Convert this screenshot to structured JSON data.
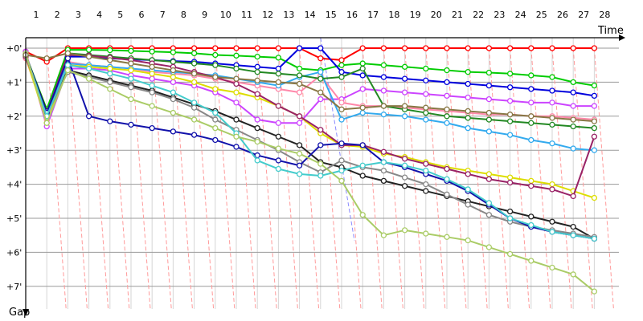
{
  "chart_data": {
    "type": "line",
    "xlabel": "Time",
    "ylabel": "Gap",
    "x": [
      1,
      2,
      3,
      4,
      5,
      6,
      7,
      8,
      9,
      10,
      11,
      12,
      13,
      14,
      15,
      16,
      17,
      18,
      19,
      20,
      21,
      22,
      23,
      24,
      25,
      26,
      27,
      28
    ],
    "x_tick_labels": [
      "1",
      "2",
      "3",
      "4",
      "5",
      "6",
      "7",
      "8",
      "9",
      "10",
      "11",
      "12",
      "13",
      "14",
      "15",
      "16",
      "17",
      "18",
      "19",
      "20",
      "21",
      "22",
      "23",
      "24",
      "25",
      "26",
      "27",
      "28"
    ],
    "y_tick_labels": [
      "+0'",
      "+1'",
      "+2'",
      "+3'",
      "+4'",
      "+5'",
      "+6'",
      "+7'"
    ],
    "ylim": [
      0,
      7.4
    ],
    "grid": true,
    "series": [
      {
        "color": "#ff0000",
        "values": [
          0.1,
          0.4,
          0,
          0,
          0,
          0,
          0,
          0,
          0,
          0,
          0,
          0,
          0,
          0,
          0.3,
          0.35,
          0,
          0,
          0,
          0,
          0,
          0,
          0,
          0,
          0,
          0,
          0,
          0
        ]
      },
      {
        "color": "#00cc00",
        "values": [
          0.2,
          1.8,
          0.05,
          0.05,
          0.06,
          0.08,
          0.1,
          0.12,
          0.15,
          0.2,
          0.22,
          0.25,
          0.28,
          0.6,
          0.65,
          0.5,
          0.45,
          0.5,
          0.55,
          0.6,
          0.65,
          0.7,
          0.72,
          0.75,
          0.8,
          0.85,
          1.0,
          1.1
        ]
      },
      {
        "color": "#0000dd",
        "values": [
          0.2,
          1.9,
          0.25,
          0.25,
          0.3,
          0.33,
          0.35,
          0.38,
          0.4,
          0.45,
          0.5,
          0.55,
          0.6,
          0,
          0,
          0.7,
          0.8,
          0.85,
          0.9,
          0.95,
          1.0,
          1.05,
          1.1,
          1.15,
          1.2,
          1.25,
          1.3,
          1.4
        ]
      },
      {
        "color": "#cc44ff",
        "values": [
          0.1,
          2.3,
          0.6,
          0.6,
          0.65,
          0.8,
          0.9,
          1.0,
          1.1,
          1.3,
          1.6,
          2.1,
          2.2,
          2.2,
          1.5,
          1.5,
          1.2,
          1.25,
          1.3,
          1.35,
          1.4,
          1.45,
          1.5,
          1.55,
          1.6,
          1.6,
          1.7,
          1.7
        ]
      },
      {
        "color": "#ff88aa",
        "values": [
          0.3,
          2.1,
          0.4,
          0.5,
          0.55,
          0.6,
          0.7,
          0.75,
          0.8,
          0.9,
          1.0,
          1.1,
          1.2,
          1.3,
          0.8,
          1.6,
          1.7,
          1.7,
          1.75,
          1.8,
          1.85,
          1.9,
          1.95,
          1.95,
          2.0,
          2.0,
          2.05,
          2.1
        ]
      },
      {
        "color": "#33aaee",
        "values": [
          0.2,
          2.0,
          0.45,
          0.5,
          0.55,
          0.6,
          0.65,
          0.7,
          0.75,
          0.8,
          0.9,
          1.0,
          1.1,
          0.85,
          0.7,
          2.1,
          1.9,
          1.95,
          2.0,
          2.1,
          2.2,
          2.35,
          2.45,
          2.55,
          2.7,
          2.8,
          2.95,
          3.0
        ]
      },
      {
        "color": "#228822",
        "values": [
          0.2,
          1.9,
          0.15,
          0.2,
          0.25,
          0.3,
          0.35,
          0.4,
          0.45,
          0.5,
          0.6,
          0.7,
          0.75,
          0.8,
          0.9,
          0.85,
          0.6,
          1.7,
          1.8,
          1.9,
          2.0,
          2.05,
          2.1,
          2.15,
          2.2,
          2.25,
          2.3,
          2.35
        ]
      },
      {
        "color": "#dddd00",
        "values": [
          0.25,
          2.2,
          0.5,
          0.55,
          0.6,
          0.65,
          0.75,
          0.85,
          1.0,
          1.2,
          1.3,
          1.45,
          1.7,
          2.0,
          2.5,
          2.85,
          2.9,
          3.1,
          3.2,
          3.35,
          3.5,
          3.6,
          3.7,
          3.8,
          3.9,
          4.0,
          4.2,
          4.4
        ]
      },
      {
        "color": "#992266",
        "values": [
          0.25,
          1.9,
          0.2,
          0.22,
          0.28,
          0.35,
          0.45,
          0.55,
          0.7,
          0.85,
          1.05,
          1.35,
          1.7,
          2.0,
          2.4,
          2.85,
          2.85,
          3.05,
          3.25,
          3.4,
          3.55,
          3.7,
          3.85,
          3.95,
          4.05,
          4.15,
          4.35,
          2.6
        ]
      },
      {
        "color": "#222222",
        "values": [
          0.2,
          1.85,
          0.65,
          0.8,
          0.95,
          1.1,
          1.25,
          1.45,
          1.65,
          1.85,
          2.1,
          2.35,
          2.6,
          2.85,
          3.35,
          3.5,
          3.75,
          3.9,
          4.05,
          4.2,
          4.35,
          4.5,
          4.65,
          4.8,
          4.95,
          5.1,
          5.25,
          5.6
        ]
      },
      {
        "color": "#888888",
        "values": [
          0.2,
          1.95,
          0.7,
          0.85,
          1.0,
          1.15,
          1.3,
          1.5,
          1.75,
          2.1,
          2.4,
          2.7,
          3.0,
          3.35,
          3.65,
          3.3,
          3.5,
          3.6,
          3.8,
          4.0,
          4.3,
          4.6,
          4.9,
          5.1,
          5.25,
          5.35,
          5.45,
          5.55
        ]
      },
      {
        "color": "#1111aa",
        "values": [
          0.2,
          1.9,
          0.3,
          2.0,
          2.15,
          2.25,
          2.35,
          2.45,
          2.55,
          2.7,
          2.9,
          3.15,
          3.3,
          3.45,
          2.85,
          2.8,
          2.85,
          3.35,
          3.5,
          3.7,
          3.9,
          4.2,
          4.6,
          5.0,
          5.25,
          5.4,
          5.5,
          5.6
        ]
      },
      {
        "color": "#44cccc",
        "values": [
          0.2,
          2.0,
          0.5,
          0.6,
          0.75,
          0.9,
          1.1,
          1.3,
          1.6,
          1.9,
          2.5,
          3.3,
          3.55,
          3.7,
          3.75,
          3.6,
          3.45,
          3.35,
          3.45,
          3.6,
          3.85,
          4.15,
          4.55,
          5.0,
          5.2,
          5.4,
          5.5,
          5.6
        ]
      },
      {
        "color": "#aacc66",
        "values": [
          0.15,
          2.2,
          0.65,
          0.9,
          1.2,
          1.5,
          1.7,
          1.9,
          2.1,
          2.35,
          2.6,
          2.75,
          2.95,
          3.1,
          3.4,
          3.9,
          4.9,
          5.5,
          5.35,
          5.45,
          5.55,
          5.65,
          5.85,
          6.05,
          6.25,
          6.45,
          6.65,
          7.15
        ]
      },
      {
        "color": "#887744",
        "values": [
          0.2,
          0.3,
          0.15,
          0.25,
          0.35,
          0.45,
          0.55,
          0.65,
          0.75,
          0.85,
          0.9,
          0.95,
          1.0,
          1.05,
          1.3,
          1.8,
          1.75,
          1.7,
          1.7,
          1.75,
          1.8,
          1.85,
          1.9,
          1.95,
          2.0,
          2.05,
          2.1,
          2.15
        ]
      }
    ]
  }
}
